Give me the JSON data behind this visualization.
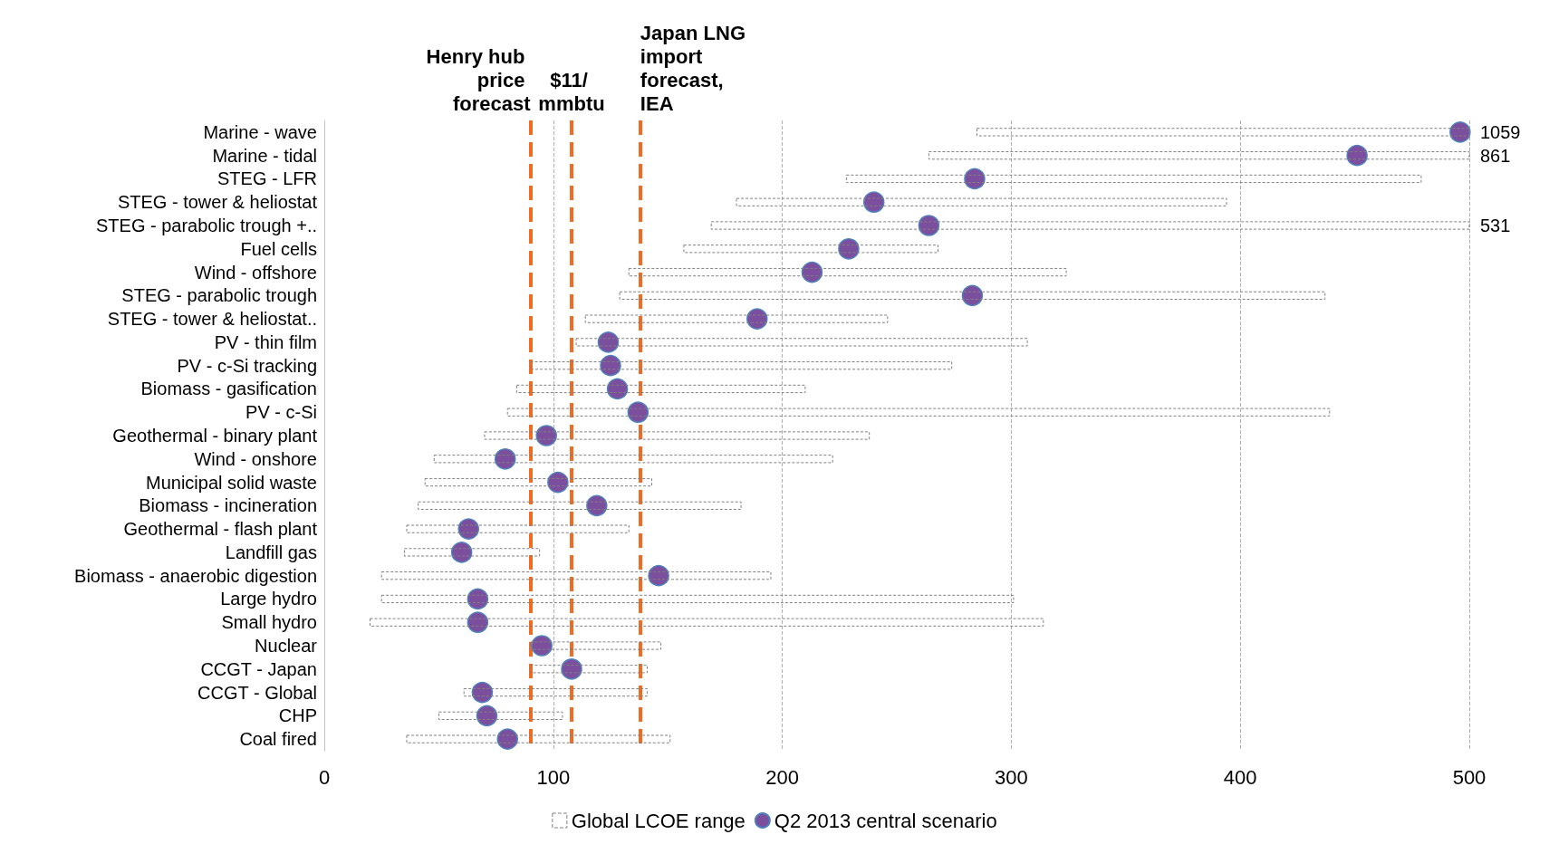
{
  "chart_data": {
    "type": "bar",
    "orientation": "horizontal",
    "categories": [
      "Marine - wave",
      "Marine - tidal",
      "STEG - LFR",
      "STEG - tower & heliostat",
      "STEG - parabolic trough +..",
      "Fuel cells",
      "Wind - offshore",
      "STEG - parabolic trough",
      "STEG - tower & heliostat..",
      "PV - thin film",
      "PV - c-Si tracking",
      "Biomass - gasification",
      "PV - c-Si",
      "Geothermal - binary plant",
      "Wind - onshore",
      "Municipal solid waste",
      "Biomass - incineration",
      "Geothermal - flash plant",
      "Landfill gas",
      "Biomass - anaerobic digestion",
      "Large hydro",
      "Small hydro",
      "Nuclear",
      "CCGT - Japan",
      "CCGT - Global",
      "CHP",
      "Coal fired"
    ],
    "series": [
      {
        "name": "Global LCOE range",
        "color": "#808080",
        "base": [
          285,
          264,
          228,
          180,
          169,
          157,
          133,
          129,
          114,
          110,
          90,
          84,
          80,
          70,
          48,
          44,
          41,
          36,
          35,
          25,
          25,
          20,
          90,
          90,
          61,
          50,
          36
        ],
        "values": [
          215,
          236,
          251,
          214,
          331,
          111,
          191,
          308,
          132,
          197,
          184,
          126,
          359,
          168,
          174,
          99,
          141,
          97,
          59,
          170,
          276,
          294,
          57,
          51,
          80,
          54,
          115
        ]
      },
      {
        "name": "Q2 2013 central scenario",
        "type": "scatter",
        "color": "#7b4f9e",
        "values": [
          496,
          451,
          284,
          240,
          264,
          229,
          213,
          283,
          189,
          124,
          125,
          128,
          137,
          97,
          79,
          102,
          119,
          63,
          60,
          146,
          67,
          67,
          95,
          108,
          69,
          71,
          80
        ]
      }
    ],
    "xlim": [
      0,
      500
    ],
    "xticks": [
      0,
      100,
      200,
      300,
      400,
      500
    ],
    "grid": "x",
    "legend": "bottom",
    "marker": "circle",
    "ref_lines": [
      {
        "axis": "x",
        "value": 90,
        "label": "Henry hub price forecast",
        "color": "#f26b21",
        "line_style": "dashed"
      },
      {
        "axis": "x",
        "value": 108,
        "label": "$11/ mmbtu",
        "color": "#f26b21",
        "line_style": "dashed"
      },
      {
        "axis": "x",
        "value": 138,
        "label": "Japan LNG import forecast, IEA",
        "color": "#f26b21",
        "line_style": "dashed"
      }
    ],
    "annotations": [
      "1059",
      "861",
      "531"
    ]
  }
}
